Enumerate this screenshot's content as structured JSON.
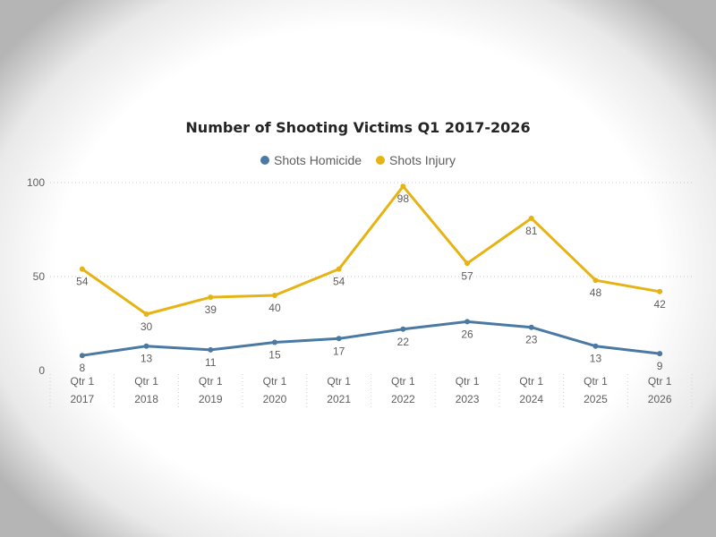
{
  "chart_data": {
    "type": "line",
    "title": "Number of Shooting Victims Q1 2017-2026",
    "categories": [
      [
        "Qtr 1",
        "2017"
      ],
      [
        "Qtr 1",
        "2018"
      ],
      [
        "Qtr 1",
        "2019"
      ],
      [
        "Qtr 1",
        "2020"
      ],
      [
        "Qtr 1",
        "2021"
      ],
      [
        "Qtr 1",
        "2022"
      ],
      [
        "Qtr 1",
        "2023"
      ],
      [
        "Qtr 1",
        "2024"
      ],
      [
        "Qtr 1",
        "2025"
      ],
      [
        "Qtr 1",
        "2026"
      ]
    ],
    "series": [
      {
        "name": "Shots Homicide",
        "color": "#4a7aa3",
        "values": [
          8,
          13,
          11,
          15,
          17,
          22,
          26,
          23,
          13,
          9
        ]
      },
      {
        "name": "Shots Injury",
        "color": "#e6b314",
        "values": [
          54,
          30,
          39,
          40,
          54,
          98,
          57,
          81,
          48,
          42
        ]
      }
    ],
    "ylim": [
      0,
      100
    ],
    "yticks": [
      0,
      50,
      100
    ],
    "grid": true,
    "legend": "top-center"
  }
}
